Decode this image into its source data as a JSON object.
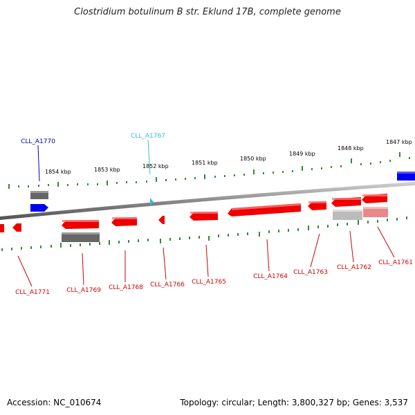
{
  "title": "Clostridium botulinum B str. Eklund 17B, complete genome",
  "footer": {
    "accession": "Accession: NC_010674",
    "summary": "Topology: circular; Length: 3,800,327 bp; Genes: 3,537"
  },
  "colors": {
    "forward_gene": "#0000ee",
    "reverse_gene": "#ee0000",
    "rna_gene": "#33bbdd",
    "pseudo_feature": "#666666",
    "backbone": "#888888",
    "tick": "#338833"
  },
  "scale_labels": [
    "1854 kbp",
    "1853 kbp",
    "1852 kbp",
    "1851 kbp",
    "1850 kbp",
    "1849 kbp",
    "1848 kbp",
    "1847 kbp"
  ],
  "gene_labels": {
    "top": [
      {
        "text": "CLL_A1770",
        "strand": "forward"
      },
      {
        "text": "CLL_A1767",
        "strand": "rna"
      }
    ],
    "bottom": [
      {
        "text": "CLL_A1771",
        "strand": "reverse"
      },
      {
        "text": "CLL_A1769",
        "strand": "reverse"
      },
      {
        "text": "CLL_A1768",
        "strand": "reverse"
      },
      {
        "text": "CLL_A1766",
        "strand": "reverse"
      },
      {
        "text": "CLL_A1765",
        "strand": "reverse"
      },
      {
        "text": "CLL_A1764",
        "strand": "reverse"
      },
      {
        "text": "CLL_A1763",
        "strand": "reverse"
      },
      {
        "text": "CLL_A1762",
        "strand": "reverse"
      },
      {
        "text": "CLL_A1761",
        "strand": "reverse"
      }
    ]
  }
}
